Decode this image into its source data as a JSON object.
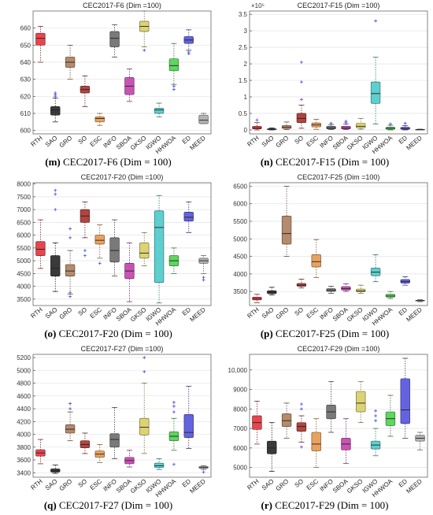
{
  "figure": {
    "categories": [
      "RTH",
      "SAO",
      "GRO",
      "SO",
      "ESC",
      "INFO",
      "SBOA",
      "GKSO",
      "IGWO",
      "HHWOA",
      "ED",
      "MEED"
    ],
    "colors": [
      "#e8454e",
      "#3a3a3a",
      "#b58b6d",
      "#b2453f",
      "#e8a25e",
      "#7a7a7a",
      "#c953b5",
      "#dcd373",
      "#5ecfcf",
      "#5fd65f",
      "#6363e0",
      "#b3b3b3"
    ]
  },
  "panels": [
    {
      "letter": "(m)",
      "caption": "CEC2017-F6 (Dim = 100)"
    },
    {
      "letter": "(n)",
      "caption": "CEC2017-F15 (Dim = 100)"
    },
    {
      "letter": "(o)",
      "caption": "CEC2017-F20 (Dim = 100)"
    },
    {
      "letter": "(p)",
      "caption": "CEC2017-F25 (Dim = 100)"
    },
    {
      "letter": "(q)",
      "caption": "CEC2017-F27 (Dim = 100)"
    },
    {
      "letter": "(r)",
      "caption": "CEC2017-F29 (Dim = 100)"
    }
  ],
  "chart_data": [
    {
      "type": "box",
      "title": "CEC2017-F6 (Dim =100)",
      "ylim": [
        598,
        670
      ],
      "yticks": [
        600,
        610,
        620,
        630,
        640,
        650,
        660
      ],
      "ytick_labels": [
        "600",
        "610",
        "620",
        "630",
        "640",
        "650",
        "660"
      ],
      "exponent_label": "",
      "categories": [
        "RTH",
        "SAO",
        "GRO",
        "SO",
        "ESC",
        "INFO",
        "SBOA",
        "GKSO",
        "IGWO",
        "HHWOA",
        "ED",
        "MEED"
      ],
      "boxes": [
        {
          "wl": 640,
          "q1": 650,
          "med": 654,
          "q3": 657,
          "wh": 661,
          "out": []
        },
        {
          "wl": 605,
          "q1": 609,
          "med": 612,
          "q3": 614,
          "wh": 619,
          "out": [
            620,
            621,
            622
          ]
        },
        {
          "wl": 630,
          "q1": 637,
          "med": 640,
          "q3": 643,
          "wh": 650,
          "out": []
        },
        {
          "wl": 614,
          "q1": 622,
          "med": 624,
          "q3": 626,
          "wh": 632,
          "out": []
        },
        {
          "wl": 603,
          "q1": 605,
          "med": 607,
          "q3": 608,
          "wh": 610,
          "out": []
        },
        {
          "wl": 643,
          "q1": 649,
          "med": 654,
          "q3": 658,
          "wh": 662,
          "out": []
        },
        {
          "wl": 617,
          "q1": 621,
          "med": 626,
          "q3": 631,
          "wh": 636,
          "out": []
        },
        {
          "wl": 649,
          "q1": 658,
          "med": 661,
          "q3": 664,
          "wh": 670,
          "out": [
            647
          ]
        },
        {
          "wl": 608,
          "q1": 610,
          "med": 612,
          "q3": 613,
          "wh": 616,
          "out": []
        },
        {
          "wl": 627,
          "q1": 635,
          "med": 638,
          "q3": 642,
          "wh": 651,
          "out": [
            624,
            626
          ]
        },
        {
          "wl": 647,
          "q1": 651,
          "med": 653,
          "q3": 655,
          "wh": 659,
          "out": [
            645,
            646
          ]
        },
        {
          "wl": 604,
          "q1": 604,
          "med": 606,
          "q3": 609,
          "wh": 610,
          "out": []
        }
      ]
    },
    {
      "type": "box",
      "title": "CEC2017-F15 (Dim =100)",
      "ylim": [
        -12000,
        360000
      ],
      "yticks": [
        0,
        50000,
        100000,
        150000,
        200000,
        250000,
        300000,
        350000
      ],
      "ytick_labels": [
        "0",
        "0.5",
        "1",
        "1.5",
        "2",
        "2.5",
        "3",
        "3.5"
      ],
      "exponent_label": "×10⁵",
      "categories": [
        "RTH",
        "SAO",
        "GRO",
        "SO",
        "ESC",
        "INFO",
        "SBOA",
        "GKSO",
        "IGWO",
        "HHWOA",
        "ED",
        "MEED"
      ],
      "boxes": [
        {
          "wl": 0,
          "q1": 3000,
          "med": 6000,
          "q3": 11000,
          "wh": 22000,
          "out": [
            30000
          ]
        },
        {
          "wl": 0,
          "q1": 1000,
          "med": 2000,
          "q3": 3500,
          "wh": 6000,
          "out": []
        },
        {
          "wl": 1000,
          "q1": 4000,
          "med": 8000,
          "q3": 13000,
          "wh": 24000,
          "out": []
        },
        {
          "wl": 5000,
          "q1": 22000,
          "med": 35000,
          "q3": 50000,
          "wh": 75000,
          "out": [
            92000,
            145000,
            205000
          ]
        },
        {
          "wl": 2000,
          "q1": 9000,
          "med": 15000,
          "q3": 21000,
          "wh": 32000,
          "out": []
        },
        {
          "wl": 1000,
          "q1": 3000,
          "med": 6000,
          "q3": 11000,
          "wh": 16000,
          "out": [
            20000
          ]
        },
        {
          "wl": 1000,
          "q1": 3000,
          "med": 6000,
          "q3": 11000,
          "wh": 18000,
          "out": [
            22000,
            26000
          ]
        },
        {
          "wl": 2000,
          "q1": 6000,
          "med": 11000,
          "q3": 20000,
          "wh": 35000,
          "out": []
        },
        {
          "wl": 18000,
          "q1": 80000,
          "med": 110000,
          "q3": 145000,
          "wh": 220000,
          "out": [
            330000
          ]
        },
        {
          "wl": 0,
          "q1": 2000,
          "med": 5000,
          "q3": 8000,
          "wh": 14000,
          "out": [
            18000
          ]
        },
        {
          "wl": 0,
          "q1": 2000,
          "med": 4000,
          "q3": 8000,
          "wh": 13000,
          "out": [
            20000
          ]
        },
        {
          "wl": 0,
          "q1": 500,
          "med": 1000,
          "q3": 1500,
          "wh": 2500,
          "out": []
        }
      ]
    },
    {
      "type": "box",
      "title": "CEC2017-F20 (Dim =100)",
      "ylim": [
        3250,
        8050
      ],
      "yticks": [
        3500,
        4000,
        4500,
        5000,
        5500,
        6000,
        6500,
        7000,
        7500,
        8000
      ],
      "ytick_labels": [
        "3500",
        "4000",
        "4500",
        "5000",
        "5500",
        "6000",
        "6500",
        "7000",
        "7500",
        "8000"
      ],
      "exponent_label": "",
      "categories": [
        "RTH",
        "SAO",
        "GRO",
        "SO",
        "ESC",
        "INFO",
        "SBOA",
        "GKSO",
        "IGWO",
        "HHWOA",
        "ED",
        "MEED"
      ],
      "boxes": [
        {
          "wl": 4700,
          "q1": 5200,
          "med": 5450,
          "q3": 5750,
          "wh": 6600,
          "out": []
        },
        {
          "wl": 3800,
          "q1": 4400,
          "med": 4700,
          "q3": 5200,
          "wh": 5700,
          "out": [
            7000,
            7600,
            7750
          ]
        },
        {
          "wl": 3700,
          "q1": 4400,
          "med": 4600,
          "q3": 4850,
          "wh": 5400,
          "out": [
            3600,
            3750,
            5900,
            6250
          ]
        },
        {
          "wl": 5900,
          "q1": 6500,
          "med": 6750,
          "q3": 7000,
          "wh": 7300,
          "out": [
            5200,
            5400
          ]
        },
        {
          "wl": 5100,
          "q1": 5650,
          "med": 5800,
          "q3": 6000,
          "wh": 6400,
          "out": [
            4900
          ]
        },
        {
          "wl": 4400,
          "q1": 4950,
          "med": 5400,
          "q3": 5900,
          "wh": 6600,
          "out": []
        },
        {
          "wl": 3400,
          "q1": 4300,
          "med": 4600,
          "q3": 4900,
          "wh": 5700,
          "out": []
        },
        {
          "wl": 4800,
          "q1": 5100,
          "med": 5300,
          "q3": 5700,
          "wh": 6100,
          "out": []
        },
        {
          "wl": 3350,
          "q1": 4150,
          "med": 6300,
          "q3": 6950,
          "wh": 7550,
          "out": []
        },
        {
          "wl": 4500,
          "q1": 4800,
          "med": 5000,
          "q3": 5200,
          "wh": 5500,
          "out": []
        },
        {
          "wl": 6100,
          "q1": 6550,
          "med": 6700,
          "q3": 6900,
          "wh": 7300,
          "out": []
        },
        {
          "wl": 4500,
          "q1": 4900,
          "med": 5000,
          "q3": 5100,
          "wh": 5200,
          "out": [
            4250,
            4350
          ]
        }
      ]
    },
    {
      "type": "box",
      "title": "CEC2017-F25 (Dim =100)",
      "ylim": [
        3100,
        6600
      ],
      "yticks": [
        3500,
        4000,
        4500,
        5000,
        5500,
        6000,
        6500
      ],
      "ytick_labels": [
        "3500",
        "4000",
        "4500",
        "5000",
        "5500",
        "6000",
        "6500"
      ],
      "exponent_label": "",
      "categories": [
        "RTH",
        "SAO",
        "GRO",
        "SO",
        "ESC",
        "INFO",
        "SBOA",
        "GKSO",
        "IGWO",
        "HHWOA",
        "ED",
        "MEED"
      ],
      "boxes": [
        {
          "wl": 3180,
          "q1": 3260,
          "med": 3300,
          "q3": 3340,
          "wh": 3420,
          "out": []
        },
        {
          "wl": 3400,
          "q1": 3440,
          "med": 3480,
          "q3": 3520,
          "wh": 3620,
          "out": []
        },
        {
          "wl": 4500,
          "q1": 4850,
          "med": 5150,
          "q3": 5650,
          "wh": 6500,
          "out": []
        },
        {
          "wl": 3600,
          "q1": 3650,
          "med": 3680,
          "q3": 3730,
          "wh": 3850,
          "out": []
        },
        {
          "wl": 3900,
          "q1": 4200,
          "med": 4350,
          "q3": 4550,
          "wh": 4980,
          "out": []
        },
        {
          "wl": 3450,
          "q1": 3500,
          "med": 3540,
          "q3": 3580,
          "wh": 3650,
          "out": []
        },
        {
          "wl": 3500,
          "q1": 3540,
          "med": 3580,
          "q3": 3640,
          "wh": 3720,
          "out": []
        },
        {
          "wl": 3450,
          "q1": 3490,
          "med": 3520,
          "q3": 3570,
          "wh": 3680,
          "out": []
        },
        {
          "wl": 3780,
          "q1": 3950,
          "med": 4050,
          "q3": 4170,
          "wh": 4550,
          "out": []
        },
        {
          "wl": 3300,
          "q1": 3340,
          "med": 3370,
          "q3": 3420,
          "wh": 3500,
          "out": []
        },
        {
          "wl": 3680,
          "q1": 3740,
          "med": 3780,
          "q3": 3840,
          "wh": 3920,
          "out": []
        },
        {
          "wl": 3210,
          "q1": 3230,
          "med": 3240,
          "q3": 3250,
          "wh": 3270,
          "out": []
        }
      ]
    },
    {
      "type": "box",
      "title": "CEC2017-F27 (Dim =100)",
      "ylim": [
        3330,
        5250
      ],
      "yticks": [
        3400,
        3600,
        3800,
        4000,
        4200,
        4400,
        4600,
        4800,
        5000,
        5200
      ],
      "ytick_labels": [
        "3400",
        "3600",
        "3800",
        "4000",
        "4200",
        "4400",
        "4600",
        "4800",
        "5000",
        "5200"
      ],
      "exponent_label": "",
      "categories": [
        "RTH",
        "SAO",
        "GRO",
        "SO",
        "ESC",
        "INFO",
        "SBOA",
        "GKSO",
        "IGWO",
        "HHWOA",
        "ED",
        "MEED"
      ],
      "boxes": [
        {
          "wl": 3540,
          "q1": 3660,
          "med": 3710,
          "q3": 3760,
          "wh": 3920,
          "out": []
        },
        {
          "wl": 3390,
          "q1": 3410,
          "med": 3430,
          "q3": 3460,
          "wh": 3520,
          "out": []
        },
        {
          "wl": 3900,
          "q1": 4020,
          "med": 4080,
          "q3": 4150,
          "wh": 4350,
          "out": [
            4400,
            4480
          ]
        },
        {
          "wl": 3700,
          "q1": 3790,
          "med": 3840,
          "q3": 3900,
          "wh": 4020,
          "out": []
        },
        {
          "wl": 3560,
          "q1": 3640,
          "med": 3690,
          "q3": 3740,
          "wh": 3840,
          "out": []
        },
        {
          "wl": 3620,
          "q1": 3800,
          "med": 3920,
          "q3": 4010,
          "wh": 4420,
          "out": []
        },
        {
          "wl": 3490,
          "q1": 3540,
          "med": 3590,
          "q3": 3640,
          "wh": 3750,
          "out": []
        },
        {
          "wl": 3700,
          "q1": 3990,
          "med": 4110,
          "q3": 4250,
          "wh": 4800,
          "out": [
            4980,
            5200
          ]
        },
        {
          "wl": 3450,
          "q1": 3480,
          "med": 3510,
          "q3": 3550,
          "wh": 3620,
          "out": []
        },
        {
          "wl": 3750,
          "q1": 3900,
          "med": 3970,
          "q3": 4040,
          "wh": 4250,
          "out": [
            3530,
            4350,
            4440,
            4500
          ]
        },
        {
          "wl": 3780,
          "q1": 3950,
          "med": 4030,
          "q3": 4310,
          "wh": 4750,
          "out": []
        },
        {
          "wl": 3450,
          "q1": 3470,
          "med": 3480,
          "q3": 3500,
          "wh": 3510,
          "out": [
            3410
          ]
        }
      ]
    },
    {
      "type": "box",
      "title": "CEC2017-F29 (Dim =100)",
      "ylim": [
        4500,
        10800
      ],
      "yticks": [
        5000,
        6000,
        7000,
        8000,
        9000,
        10000
      ],
      "ytick_labels": [
        "5000",
        "6000",
        "7000",
        "8000",
        "9000",
        "10,000"
      ],
      "exponent_label": "",
      "categories": [
        "RTH",
        "SAO",
        "GRO",
        "SO",
        "ESC",
        "INFO",
        "SBOA",
        "GKSO",
        "IGWO",
        "HHWOA",
        "ED",
        "MEED"
      ],
      "boxes": [
        {
          "wl": 6200,
          "q1": 6950,
          "med": 7300,
          "q3": 7650,
          "wh": 8400,
          "out": []
        },
        {
          "wl": 4800,
          "q1": 5700,
          "med": 6000,
          "q3": 6350,
          "wh": 7300,
          "out": []
        },
        {
          "wl": 6500,
          "q1": 7100,
          "med": 7400,
          "q3": 7750,
          "wh": 8300,
          "out": []
        },
        {
          "wl": 6300,
          "q1": 6850,
          "med": 7100,
          "q3": 7300,
          "wh": 7650,
          "out": [
            6050,
            8000,
            8250
          ]
        },
        {
          "wl": 5000,
          "q1": 5850,
          "med": 6200,
          "q3": 6800,
          "wh": 7500,
          "out": []
        },
        {
          "wl": 6800,
          "q1": 7500,
          "med": 7850,
          "q3": 8200,
          "wh": 9400,
          "out": []
        },
        {
          "wl": 5200,
          "q1": 5900,
          "med": 6200,
          "q3": 6500,
          "wh": 7500,
          "out": []
        },
        {
          "wl": 7300,
          "q1": 7850,
          "med": 8300,
          "q3": 8900,
          "wh": 9400,
          "out": []
        },
        {
          "wl": 5600,
          "q1": 5950,
          "med": 6150,
          "q3": 6350,
          "wh": 7000,
          "out": [
            7400,
            7650,
            7900
          ]
        },
        {
          "wl": 6600,
          "q1": 7150,
          "med": 7500,
          "q3": 7850,
          "wh": 8700,
          "out": []
        },
        {
          "wl": 6500,
          "q1": 7250,
          "med": 7950,
          "q3": 9550,
          "wh": 10600,
          "out": []
        },
        {
          "wl": 5900,
          "q1": 6350,
          "med": 6500,
          "q3": 6650,
          "wh": 6800,
          "out": []
        }
      ]
    }
  ]
}
